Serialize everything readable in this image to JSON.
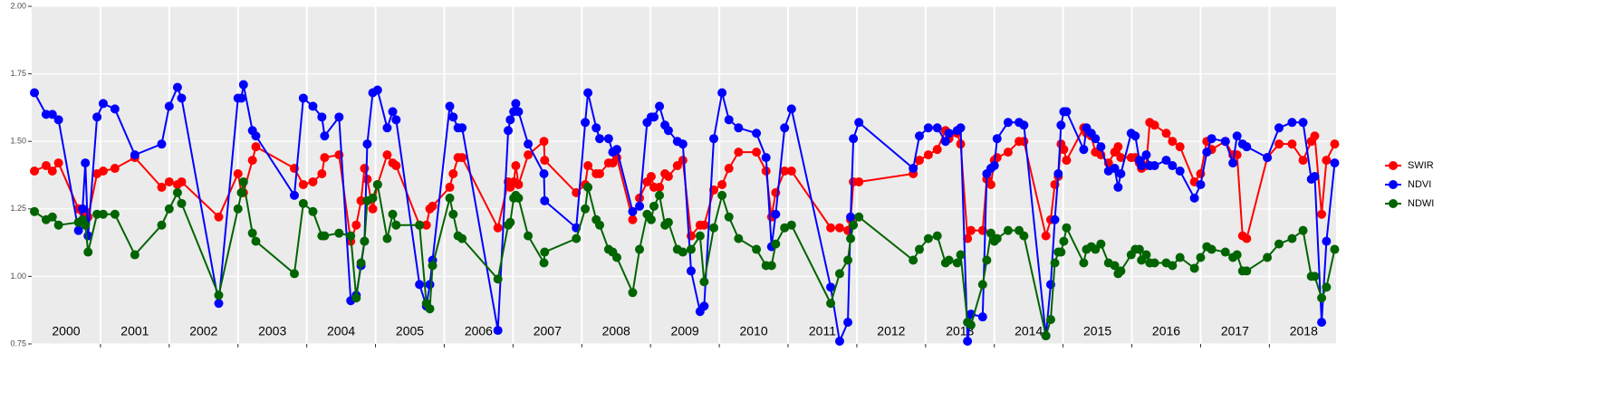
{
  "chart_data": {
    "type": "line",
    "x": [
      2000.04,
      2000.21,
      2000.3,
      2000.39,
      2000.68,
      2000.74,
      2000.78,
      2000.82,
      2000.95,
      2001.04,
      2001.21,
      2001.5,
      2001.89,
      2002.0,
      2002.12,
      2002.18,
      2002.72,
      2003.0,
      2003.05,
      2003.08,
      2003.21,
      2003.26,
      2003.82,
      2003.95,
      2004.09,
      2004.22,
      2004.26,
      2004.47,
      2004.64,
      2004.72,
      2004.79,
      2004.84,
      2004.88,
      2004.96,
      2005.03,
      2005.17,
      2005.25,
      2005.3,
      2005.64,
      2005.74,
      2005.79,
      2005.83,
      2006.08,
      2006.13,
      2006.2,
      2006.26,
      2006.78,
      2006.93,
      2006.96,
      2007.01,
      2007.04,
      2007.08,
      2007.22,
      2007.45,
      2007.46,
      2007.92,
      2008.05,
      2008.09,
      2008.21,
      2008.26,
      2008.39,
      2008.45,
      2008.51,
      2008.74,
      2008.84,
      2008.95,
      2009.01,
      2009.05,
      2009.13,
      2009.21,
      2009.26,
      2009.39,
      2009.47,
      2009.59,
      2009.72,
      2009.78,
      2009.92,
      2010.04,
      2010.14,
      2010.28,
      2010.54,
      2010.68,
      2010.76,
      2010.82,
      2010.95,
      2011.05,
      2011.62,
      2011.75,
      2011.87,
      2011.91,
      2011.95,
      2012.03,
      2012.82,
      2012.91,
      2013.04,
      2013.17,
      2013.29,
      2013.34,
      2013.46,
      2013.51,
      2013.61,
      2013.66,
      2013.83,
      2013.89,
      2013.95,
      2014.0,
      2014.04,
      2014.2,
      2014.36,
      2014.43,
      2014.75,
      2014.82,
      2014.88,
      2014.93,
      2014.97,
      2015.01,
      2015.05,
      2015.3,
      2015.34,
      2015.41,
      2015.47,
      2015.55,
      2015.66,
      2015.75,
      2015.8,
      2015.84,
      2015.99,
      2016.05,
      2016.11,
      2016.14,
      2016.21,
      2016.26,
      2016.33,
      2016.5,
      2016.59,
      2016.7,
      2016.91,
      2017.0,
      2017.09,
      2017.16,
      2017.36,
      2017.47,
      2017.53,
      2017.61,
      2017.67,
      2017.97,
      2018.14,
      2018.33,
      2018.49,
      2018.61,
      2018.66,
      2018.76,
      2018.83,
      2018.95
    ],
    "series": [
      {
        "name": "SWIR",
        "color": "#ff0000",
        "values": [
          1.39,
          1.41,
          1.39,
          1.42,
          1.25,
          1.24,
          1.24,
          1.22,
          1.38,
          1.39,
          1.4,
          1.44,
          1.33,
          1.35,
          1.34,
          1.35,
          1.22,
          1.38,
          1.31,
          1.31,
          1.43,
          1.48,
          1.4,
          1.34,
          1.35,
          1.38,
          1.44,
          1.45,
          1.13,
          1.19,
          1.28,
          1.4,
          1.36,
          1.25,
          1.34,
          1.45,
          1.42,
          1.41,
          1.19,
          1.19,
          1.25,
          1.26,
          1.33,
          1.38,
          1.44,
          1.44,
          1.18,
          1.35,
          1.33,
          1.35,
          1.41,
          1.34,
          1.45,
          1.5,
          1.43,
          1.31,
          1.34,
          1.41,
          1.38,
          1.38,
          1.42,
          1.42,
          1.44,
          1.21,
          1.29,
          1.35,
          1.37,
          1.33,
          1.33,
          1.38,
          1.37,
          1.41,
          1.43,
          1.15,
          1.19,
          1.19,
          1.32,
          1.34,
          1.4,
          1.46,
          1.46,
          1.39,
          1.22,
          1.31,
          1.39,
          1.39,
          1.18,
          1.18,
          1.17,
          1.21,
          1.35,
          1.35,
          1.38,
          1.43,
          1.45,
          1.47,
          1.54,
          1.51,
          1.53,
          1.49,
          1.14,
          1.17,
          1.17,
          1.36,
          1.34,
          1.43,
          1.44,
          1.46,
          1.5,
          1.5,
          1.15,
          1.21,
          1.34,
          1.37,
          1.49,
          1.47,
          1.43,
          1.55,
          1.53,
          1.52,
          1.46,
          1.45,
          1.42,
          1.46,
          1.48,
          1.44,
          1.44,
          1.44,
          1.42,
          1.4,
          1.41,
          1.57,
          1.56,
          1.53,
          1.5,
          1.48,
          1.35,
          1.38,
          1.5,
          1.47,
          1.5,
          1.45,
          1.45,
          1.15,
          1.14,
          1.44,
          1.49,
          1.49,
          1.43,
          1.5,
          1.52,
          1.23,
          1.43,
          1.49
        ]
      },
      {
        "name": "NDVI",
        "color": "#0000ff",
        "values": [
          1.68,
          1.6,
          1.6,
          1.58,
          1.17,
          1.25,
          1.42,
          1.15,
          1.59,
          1.64,
          1.62,
          1.45,
          1.49,
          1.63,
          1.7,
          1.66,
          0.9,
          1.66,
          1.66,
          1.71,
          1.54,
          1.52,
          1.3,
          1.66,
          1.63,
          1.59,
          1.52,
          1.59,
          0.91,
          0.93,
          1.04,
          1.13,
          1.49,
          1.68,
          1.69,
          1.55,
          1.61,
          1.58,
          0.97,
          0.89,
          0.97,
          1.06,
          1.63,
          1.59,
          1.55,
          1.55,
          0.8,
          1.54,
          1.58,
          1.61,
          1.64,
          1.61,
          1.49,
          1.38,
          1.28,
          1.18,
          1.57,
          1.68,
          1.55,
          1.51,
          1.51,
          1.46,
          1.47,
          1.24,
          1.26,
          1.57,
          1.59,
          1.59,
          1.63,
          1.56,
          1.54,
          1.5,
          1.49,
          1.02,
          0.87,
          0.89,
          1.51,
          1.68,
          1.58,
          1.55,
          1.53,
          1.44,
          1.11,
          1.23,
          1.55,
          1.62,
          0.96,
          0.76,
          0.83,
          1.22,
          1.51,
          1.57,
          1.4,
          1.52,
          1.55,
          1.55,
          1.5,
          1.53,
          1.54,
          1.55,
          0.76,
          0.86,
          0.85,
          1.38,
          1.4,
          1.41,
          1.51,
          1.57,
          1.57,
          1.56,
          0.78,
          0.97,
          1.21,
          1.38,
          1.56,
          1.61,
          1.61,
          1.47,
          1.55,
          1.53,
          1.51,
          1.48,
          1.39,
          1.4,
          1.33,
          1.38,
          1.53,
          1.52,
          1.43,
          1.41,
          1.45,
          1.41,
          1.41,
          1.43,
          1.41,
          1.39,
          1.29,
          1.34,
          1.46,
          1.51,
          1.5,
          1.42,
          1.52,
          1.49,
          1.48,
          1.44,
          1.55,
          1.57,
          1.57,
          1.36,
          1.37,
          0.83,
          1.13,
          1.42
        ]
      },
      {
        "name": "NDWI",
        "color": "#006400",
        "values": [
          1.24,
          1.21,
          1.22,
          1.19,
          1.2,
          1.21,
          1.19,
          1.09,
          1.23,
          1.23,
          1.23,
          1.08,
          1.19,
          1.25,
          1.31,
          1.27,
          0.93,
          1.25,
          1.31,
          1.35,
          1.16,
          1.13,
          1.01,
          1.27,
          1.24,
          1.15,
          1.15,
          1.16,
          1.15,
          0.92,
          1.05,
          1.13,
          1.28,
          1.29,
          1.34,
          1.14,
          1.23,
          1.19,
          1.19,
          0.9,
          0.88,
          1.04,
          1.29,
          1.23,
          1.15,
          1.14,
          0.99,
          1.19,
          1.2,
          1.29,
          1.3,
          1.29,
          1.15,
          1.05,
          1.09,
          1.14,
          1.25,
          1.33,
          1.21,
          1.19,
          1.1,
          1.09,
          1.07,
          0.94,
          1.1,
          1.23,
          1.21,
          1.26,
          1.3,
          1.19,
          1.2,
          1.1,
          1.09,
          1.1,
          1.15,
          0.98,
          1.18,
          1.3,
          1.22,
          1.14,
          1.1,
          1.04,
          1.04,
          1.12,
          1.18,
          1.19,
          0.9,
          1.01,
          1.06,
          1.14,
          1.19,
          1.22,
          1.06,
          1.1,
          1.14,
          1.15,
          1.05,
          1.06,
          1.05,
          1.08,
          0.83,
          0.82,
          0.97,
          1.06,
          1.16,
          1.13,
          1.14,
          1.17,
          1.17,
          1.15,
          0.78,
          0.84,
          1.05,
          1.09,
          1.09,
          1.13,
          1.18,
          1.05,
          1.1,
          1.11,
          1.1,
          1.12,
          1.05,
          1.04,
          1.01,
          1.02,
          1.08,
          1.1,
          1.1,
          1.06,
          1.08,
          1.05,
          1.05,
          1.05,
          1.04,
          1.07,
          1.03,
          1.07,
          1.11,
          1.1,
          1.09,
          1.07,
          1.08,
          1.02,
          1.02,
          1.07,
          1.12,
          1.14,
          1.17,
          1.0,
          1.0,
          0.92,
          0.96,
          1.1
        ]
      }
    ],
    "year_labels": [
      "2000",
      "2001",
      "2002",
      "2003",
      "2004",
      "2005",
      "2006",
      "2007",
      "2008",
      "2009",
      "2010",
      "2011",
      "2012",
      "2013",
      "2014",
      "2015",
      "2016",
      "2017",
      "2018"
    ],
    "xlim": [
      2000,
      2018.97
    ],
    "xticks": [
      2001,
      2002,
      2003,
      2004,
      2005,
      2006,
      2007,
      2008,
      2009,
      2010,
      2011,
      2012,
      2013,
      2014,
      2015,
      2016,
      2017,
      2018
    ],
    "ylim": [
      0.75,
      2.0
    ],
    "yticks": [
      {
        "value": 0.75,
        "label": "0.75"
      },
      {
        "value": 1.0,
        "label": "1.00"
      },
      {
        "value": 1.25,
        "label": "1.25"
      },
      {
        "value": 1.5,
        "label": "1.50"
      },
      {
        "value": 1.75,
        "label": "1.75"
      },
      {
        "value": 2.0,
        "label": "2.00"
      }
    ],
    "grid": true,
    "legend": "right"
  }
}
